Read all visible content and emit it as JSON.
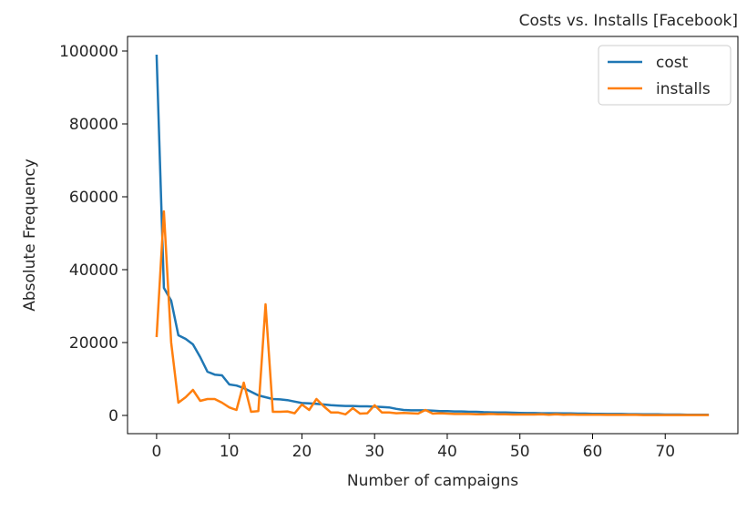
{
  "chart_data": {
    "type": "line",
    "title": "Costs vs. Installs [Facebook]",
    "title_position": "right",
    "xlabel": "Number of campaigns",
    "ylabel": "Absolute Frequency",
    "xlim": [
      -4.0,
      80.0
    ],
    "ylim": [
      -5000,
      104000
    ],
    "xticks": [
      0,
      10,
      20,
      30,
      40,
      50,
      60,
      70
    ],
    "yticks": [
      0,
      20000,
      40000,
      60000,
      80000,
      100000
    ],
    "xtick_labels": [
      "0",
      "10",
      "20",
      "30",
      "40",
      "50",
      "60",
      "70"
    ],
    "ytick_labels": [
      "0",
      "20000",
      "40000",
      "60000",
      "80000",
      "100000"
    ],
    "grid": false,
    "legend_position": "top-right",
    "x": [
      0,
      1,
      2,
      3,
      4,
      5,
      6,
      7,
      8,
      9,
      10,
      11,
      12,
      13,
      14,
      15,
      16,
      17,
      18,
      19,
      20,
      21,
      22,
      23,
      24,
      25,
      26,
      27,
      28,
      29,
      30,
      31,
      32,
      33,
      34,
      35,
      36,
      37,
      38,
      39,
      40,
      41,
      42,
      43,
      44,
      45,
      46,
      47,
      48,
      49,
      50,
      51,
      52,
      53,
      54,
      55,
      56,
      57,
      58,
      59,
      60,
      61,
      62,
      63,
      64,
      65,
      66,
      67,
      68,
      69,
      70,
      71,
      72,
      73,
      74,
      75,
      76
    ],
    "series": [
      {
        "name": "cost",
        "color": "#1f77b4",
        "values": [
          99000,
          35000,
          31500,
          22000,
          21000,
          19500,
          16000,
          12000,
          11200,
          11000,
          8500,
          8200,
          7500,
          6500,
          5500,
          5000,
          4500,
          4400,
          4200,
          3800,
          3400,
          3300,
          3200,
          3000,
          2800,
          2700,
          2600,
          2600,
          2500,
          2500,
          2400,
          2300,
          2200,
          1800,
          1500,
          1400,
          1400,
          1400,
          1300,
          1200,
          1200,
          1100,
          1100,
          1000,
          1000,
          900,
          850,
          800,
          800,
          750,
          700,
          650,
          650,
          600,
          600,
          600,
          550,
          550,
          500,
          500,
          450,
          450,
          400,
          400,
          400,
          350,
          350,
          300,
          300,
          300,
          250,
          250,
          250,
          200,
          200,
          200,
          200
        ]
      },
      {
        "name": "installs",
        "color": "#ff7f0e",
        "values": [
          21500,
          56000,
          20000,
          3500,
          5000,
          7000,
          4000,
          4500,
          4500,
          3500,
          2200,
          1500,
          9000,
          1000,
          1200,
          30500,
          1000,
          1000,
          1100,
          600,
          3000,
          1500,
          4500,
          2500,
          800,
          800,
          300,
          2000,
          500,
          600,
          2800,
          800,
          800,
          600,
          700,
          600,
          500,
          1500,
          500,
          600,
          500,
          400,
          400,
          400,
          300,
          300,
          400,
          300,
          300,
          250,
          250,
          250,
          250,
          300,
          200,
          300,
          200,
          250,
          200,
          200,
          200,
          200,
          150,
          150,
          150,
          150,
          150,
          100,
          100,
          100,
          100,
          100,
          100,
          100,
          100,
          100,
          100
        ]
      }
    ]
  }
}
